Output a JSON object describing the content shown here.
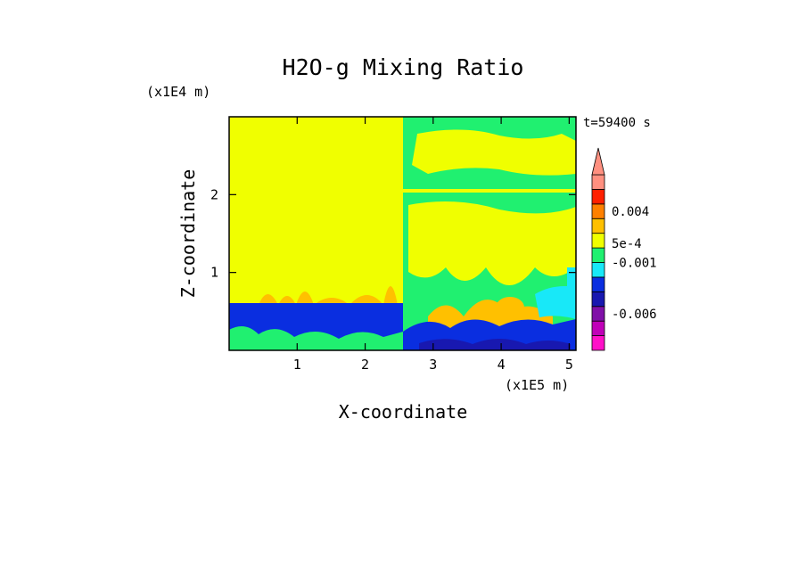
{
  "chart_data": {
    "type": "heatmap",
    "title": "H2O-g Mixing Ratio",
    "xlabel": "X-coordinate",
    "ylabel": "Z-coordinate",
    "x_unit": "(x1E5 m)",
    "y_unit": "(x1E4 m)",
    "time_label": "t=59400 s",
    "xlim": [
      0,
      5.1
    ],
    "ylim": [
      0,
      3.0
    ],
    "x_ticks": [
      {
        "value": 1,
        "label": "1"
      },
      {
        "value": 2,
        "label": "2"
      },
      {
        "value": 3,
        "label": "3"
      },
      {
        "value": 4,
        "label": "4"
      },
      {
        "value": 5,
        "label": "5"
      }
    ],
    "y_ticks": [
      {
        "value": 1,
        "label": "1"
      },
      {
        "value": 2,
        "label": "2"
      }
    ],
    "colorbar": {
      "levels": [
        {
          "color": "#ff10c8"
        },
        {
          "color": "#c000b8"
        },
        {
          "color": "#8010a8"
        },
        {
          "color": "#1818b0"
        },
        {
          "color": "#0a2ee0"
        },
        {
          "color": "#18e8f8"
        },
        {
          "color": "#20f070"
        },
        {
          "color": "#f0ff00"
        },
        {
          "color": "#ffc000"
        },
        {
          "color": "#ff8000"
        },
        {
          "color": "#ff2000"
        },
        {
          "color": "#ff9080"
        }
      ],
      "labels": [
        {
          "text": "-0.006",
          "boundary": 2.5
        },
        {
          "text": "-0.001",
          "boundary": 6
        },
        {
          "text": "5e-4",
          "boundary": 7.3
        },
        {
          "text": "0.004",
          "boundary": 9.5
        }
      ],
      "extend_top": true
    }
  }
}
